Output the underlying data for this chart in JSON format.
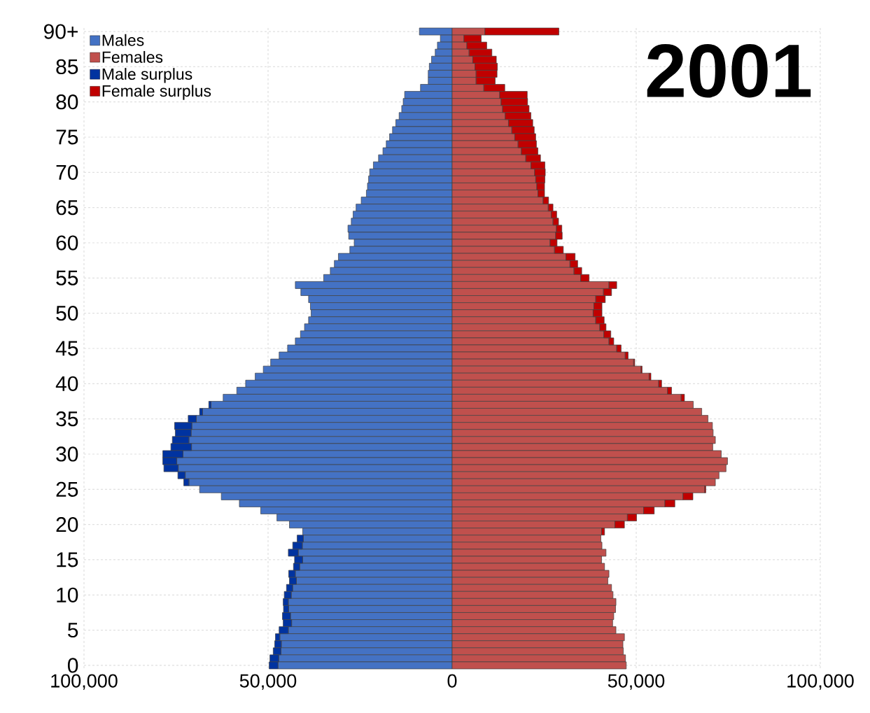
{
  "chart_data": {
    "type": "bar",
    "title": "2001",
    "orientation": "horizontal",
    "stacked": true,
    "categories": [
      "90+",
      null,
      null,
      null,
      null,
      "85",
      null,
      null,
      null,
      null,
      "80",
      null,
      null,
      null,
      null,
      "75",
      null,
      null,
      null,
      null,
      "70",
      null,
      null,
      null,
      null,
      "65",
      null,
      null,
      null,
      null,
      "60",
      null,
      null,
      null,
      null,
      "55",
      null,
      null,
      null,
      null,
      "50",
      null,
      null,
      null,
      null,
      "45",
      null,
      null,
      null,
      null,
      "40",
      null,
      null,
      null,
      null,
      "35",
      null,
      null,
      null,
      null,
      "30",
      null,
      null,
      null,
      null,
      "25",
      null,
      null,
      null,
      null,
      "20",
      null,
      null,
      null,
      null,
      "15",
      null,
      null,
      null,
      null,
      "10",
      null,
      null,
      null,
      null,
      "5",
      null,
      null,
      null,
      null,
      "0"
    ],
    "series": [
      {
        "name": "Males",
        "color": "#4472c4",
        "values": [
          -8900,
          -3200,
          -4000,
          -4600,
          -5600,
          -6200,
          -6500,
          -6500,
          -8600,
          -12900,
          -13300,
          -13700,
          -14400,
          -15300,
          -16200,
          -17000,
          -17900,
          -18800,
          -20000,
          -21400,
          -22400,
          -22700,
          -23000,
          -23300,
          -24700,
          -26100,
          -26900,
          -27400,
          -28300,
          -28100,
          -26600,
          -27800,
          -30900,
          -32000,
          -33100,
          -34900,
          -42600,
          -41100,
          -39000,
          -38500,
          -38300,
          -39000,
          -40100,
          -41200,
          -42600,
          -44700,
          -47000,
          -49300,
          -51300,
          -53500,
          -56100,
          -58500,
          -62200,
          -65500,
          -67800,
          -69500,
          -70700,
          -70900,
          -71500,
          -70800,
          -73100,
          -74800,
          -74400,
          -72500,
          -71500,
          -68600,
          -62700,
          -57800,
          -52000,
          -47600,
          -44200,
          -40600,
          -40400,
          -40700,
          -41800,
          -40600,
          -41400,
          -42600,
          -42300,
          -43300,
          -43700,
          -44500,
          -44400,
          -43900,
          -43600,
          -44500,
          -46800,
          -46400,
          -46500,
          -47100,
          -47300
        ]
      },
      {
        "name": "Females",
        "color": "#c0504d",
        "values": [
          8900,
          3200,
          4000,
          4600,
          5600,
          6200,
          6500,
          6500,
          8600,
          12900,
          13300,
          13700,
          14400,
          15300,
          16200,
          17000,
          17900,
          18800,
          20000,
          21400,
          22400,
          22700,
          23000,
          23300,
          24700,
          26100,
          26900,
          27400,
          28300,
          28100,
          26600,
          27800,
          30900,
          32000,
          33100,
          34900,
          42600,
          41100,
          39000,
          38500,
          38300,
          39000,
          40100,
          41200,
          42600,
          44700,
          47000,
          49300,
          51300,
          53500,
          56100,
          58500,
          62200,
          65500,
          67800,
          69500,
          70700,
          70900,
          71500,
          70800,
          73100,
          74800,
          74400,
          72500,
          71500,
          68600,
          62700,
          57800,
          52000,
          47600,
          44200,
          40600,
          40400,
          40700,
          41800,
          40600,
          41400,
          42600,
          42300,
          43300,
          43700,
          44500,
          44400,
          43900,
          43600,
          44500,
          46800,
          46400,
          46500,
          47100,
          47300
        ]
      },
      {
        "name": "Male surplus",
        "color": "#0033a0",
        "values": [
          null,
          null,
          null,
          null,
          null,
          null,
          null,
          null,
          null,
          null,
          null,
          null,
          null,
          null,
          null,
          null,
          null,
          null,
          null,
          null,
          null,
          null,
          null,
          null,
          null,
          null,
          null,
          null,
          null,
          null,
          null,
          null,
          null,
          null,
          null,
          null,
          null,
          null,
          null,
          null,
          null,
          null,
          null,
          null,
          null,
          null,
          null,
          null,
          null,
          null,
          null,
          null,
          null,
          -600,
          -800,
          -2200,
          -4700,
          -4300,
          -4500,
          -5600,
          -5500,
          -3800,
          -3900,
          -2000,
          -1400,
          null,
          null,
          null,
          null,
          null,
          null,
          null,
          -1700,
          -2600,
          -2700,
          -2200,
          -1700,
          -1800,
          -1900,
          -1700,
          -1900,
          -1400,
          -1400,
          -2200,
          -2300,
          -2500,
          -1200,
          -1800,
          -2100,
          -2400,
          -2400
        ]
      },
      {
        "name": "Female surplus",
        "color": "#c00000",
        "values": [
          20100,
          4700,
          5400,
          6200,
          6400,
          6100,
          5700,
          5200,
          5700,
          7500,
          7200,
          7200,
          7000,
          6600,
          6100,
          5700,
          5000,
          4500,
          4000,
          3800,
          2900,
          2500,
          2100,
          1800,
          1500,
          1300,
          1500,
          1500,
          1500,
          1800,
          1900,
          2400,
          2500,
          2100,
          2100,
          2300,
          2100,
          2200,
          2600,
          2200,
          2400,
          2300,
          1700,
          1900,
          1300,
          1200,
          800,
          300,
          300,
          500,
          800,
          1100,
          900,
          null,
          null,
          null,
          null,
          null,
          null,
          null,
          null,
          null,
          null,
          null,
          null,
          300,
          2700,
          2700,
          2900,
          2500,
          2600,
          800,
          null,
          null,
          null,
          null,
          null,
          null,
          null,
          null,
          null,
          null,
          null,
          null,
          null,
          null,
          null,
          null,
          null,
          null,
          null
        ]
      }
    ],
    "xlim": [
      -100000,
      100000
    ],
    "xticks": [
      {
        "value": -100000,
        "label": "100,000"
      },
      {
        "value": -50000,
        "label": "50,000"
      },
      0,
      {
        "value": 50000,
        "label": "50,000"
      },
      {
        "value": 100000,
        "label": "100,000"
      }
    ],
    "grid": true,
    "legend": "top left"
  }
}
